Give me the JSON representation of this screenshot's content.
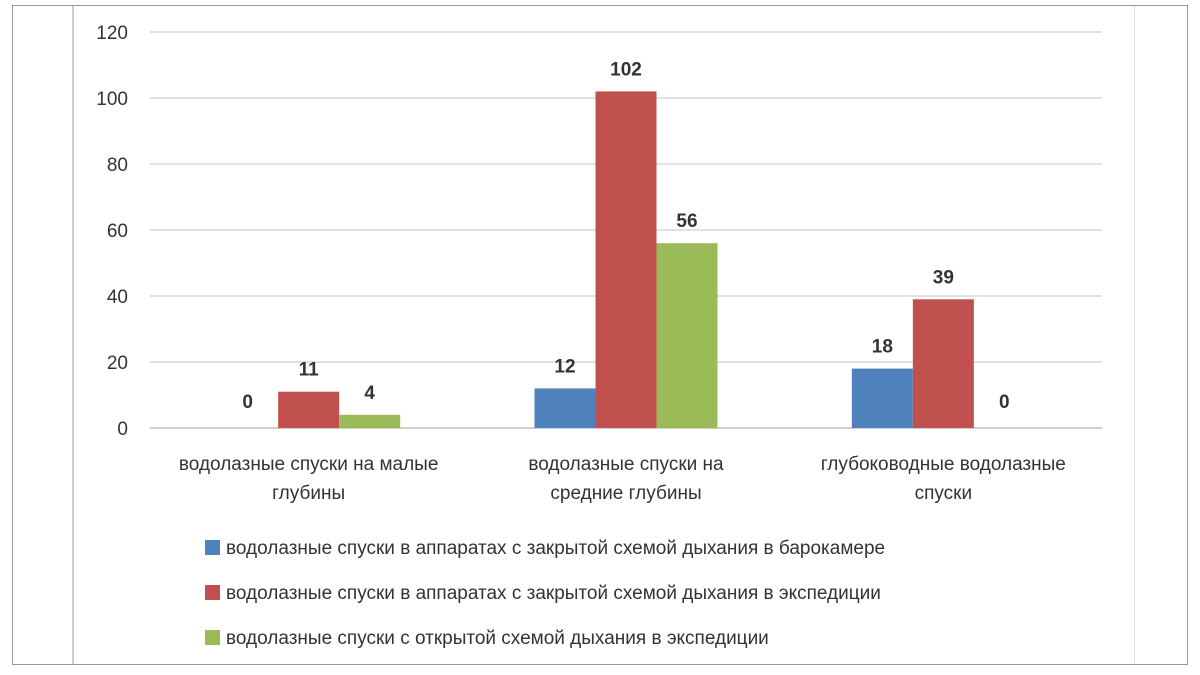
{
  "chart_data": {
    "type": "bar",
    "title": "",
    "xlabel": "",
    "ylabel": "",
    "ylim": [
      0,
      120
    ],
    "yticks": [
      0,
      20,
      40,
      60,
      80,
      100,
      120
    ],
    "grid": true,
    "legend_position": "bottom",
    "categories": [
      [
        "водолазные спуски на малые",
        "глубины"
      ],
      [
        "водолазные спуски на",
        "средние глубины"
      ],
      [
        "глубоководные водолазные",
        "спуски"
      ]
    ],
    "series": [
      {
        "name": "водолазные спуски в аппаратах с закрытой схемой дыхания в барокамере",
        "color": "#4f81bd",
        "values": [
          0,
          12,
          18
        ]
      },
      {
        "name": "водолазные спуски в аппаратах с закрытой схемой дыхания в экспедиции",
        "color": "#c0504d",
        "values": [
          11,
          102,
          39
        ]
      },
      {
        "name": "водолазные спуски с открытой схемой дыхания в экспедиции",
        "color": "#9bbb59",
        "values": [
          4,
          56,
          0
        ]
      }
    ],
    "gridline_color": "#d9d9d9",
    "axis_color": "#bfbfbf"
  }
}
